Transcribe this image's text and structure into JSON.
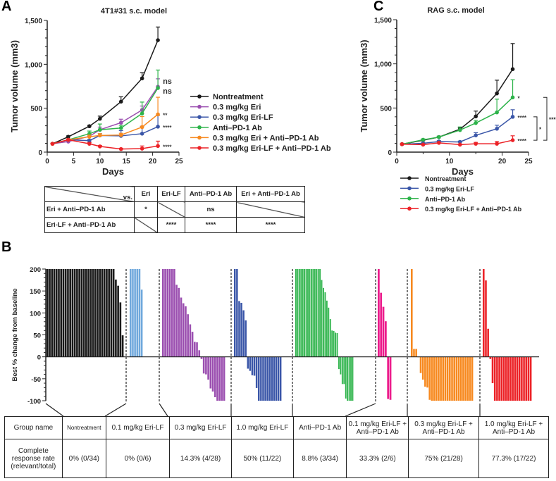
{
  "panel_labels": {
    "a": "A",
    "b": "B",
    "c": "C"
  },
  "colors": {
    "Nontreatment": "#1a1a1a",
    "0.3 mg/kg Eri": "#9b4fb0",
    "0.3 mg/kg Eri-LF": "#3a56a8",
    "Anti–PD-1 Ab": "#2db34a",
    "0.3 mg/kg Eri + Anti–PD-1 Ab": "#f7891f",
    "0.3 mg/kg Eri-LF + Anti–PD-1 Ab": "#ec2227"
  },
  "chart_data": [
    {
      "type": "line",
      "title": "4T1#31 s.c. model",
      "xlabel": "Days",
      "ylabel": "Tumor volume (mm3)",
      "xlim": [
        0,
        25
      ],
      "ylim": [
        0,
        1500
      ],
      "xticks": [
        "0",
        "5",
        "10",
        "15",
        "20",
        "25"
      ],
      "yticks": [
        "0",
        "500",
        "1,000",
        "1,500"
      ],
      "x": [
        1,
        4,
        8,
        10,
        14,
        18,
        21
      ],
      "series": [
        {
          "name": "Nontreatment",
          "values": [
            95,
            175,
            295,
            380,
            575,
            840,
            1275
          ],
          "error": [
            5,
            10,
            10,
            30,
            55,
            65,
            150
          ],
          "annotation": ""
        },
        {
          "name": "0.3 mg/kg Eri",
          "values": [
            95,
            120,
            180,
            255,
            335,
            480,
            745
          ],
          "error": [
            5,
            10,
            20,
            30,
            40,
            45,
            90
          ],
          "annotation": "ns"
        },
        {
          "name": "0.3 mg/kg Eri-LF",
          "values": [
            95,
            140,
            130,
            190,
            185,
            210,
            290
          ],
          "error": [
            5,
            10,
            15,
            20,
            60,
            85,
            130
          ],
          "annotation": "****"
        },
        {
          "name": "Anti–PD-1 Ab",
          "values": [
            95,
            140,
            210,
            255,
            275,
            440,
            730
          ],
          "error": [
            5,
            10,
            30,
            65,
            30,
            130,
            205
          ],
          "annotation": "ns"
        },
        {
          "name": "0.3 mg/kg Eri + Anti–PD-1 Ab",
          "values": [
            95,
            140,
            175,
            190,
            195,
            285,
            430
          ],
          "error": [
            5,
            10,
            20,
            20,
            20,
            120,
            195
          ],
          "annotation": "**"
        },
        {
          "name": "0.3 mg/kg Eri-LF + Anti–PD-1 Ab",
          "values": [
            95,
            140,
            95,
            65,
            35,
            40,
            70
          ],
          "error": [
            5,
            10,
            15,
            10,
            8,
            30,
            55
          ],
          "annotation": "****"
        }
      ],
      "legend": "right",
      "comparison_table": {
        "header": [
          "vs.",
          "Eri",
          "Eri-LF",
          "Anti–PD-1 Ab",
          "Eri + Anti–PD-1 Ab"
        ],
        "rows": [
          [
            "Eri + Anti–PD-1 Ab",
            "*",
            "",
            "ns",
            ""
          ],
          [
            "Eri-LF + Anti–PD-1 Ab",
            "",
            "****",
            "****",
            "****"
          ]
        ]
      }
    },
    {
      "type": "bar",
      "subtype": "waterfall",
      "ylabel": "Best % change from baseline",
      "ylim": [
        -100,
        200
      ],
      "yticks": [
        "200",
        "150",
        "100",
        "50",
        "0",
        "-50",
        "-100"
      ],
      "groups": [
        {
          "name": "Nontreatment",
          "color": "#1a1a1a",
          "values": [
            200,
            200,
            200,
            200,
            200,
            200,
            200,
            200,
            200,
            200,
            200,
            200,
            200,
            200,
            200,
            200,
            200,
            200,
            200,
            200,
            200,
            200,
            200,
            200,
            200,
            200,
            200,
            200,
            200,
            200,
            176,
            162,
            124,
            49
          ]
        },
        {
          "name": "0.1 mg/kg Eri-LF",
          "color": "#6fa8dc",
          "values": [
            200,
            200,
            200,
            200,
            200,
            153
          ]
        },
        {
          "name": "0.3 mg/kg Eri-LF",
          "color": "#9b4fb0",
          "values": [
            200,
            200,
            200,
            200,
            200,
            200,
            164,
            157,
            135,
            122,
            115,
            97,
            74,
            57,
            34,
            33,
            15,
            -5,
            -38,
            -40,
            -52,
            -72,
            -79,
            -92,
            -100,
            -100,
            -100,
            -100
          ]
        },
        {
          "name": "1.0 mg/kg Eri-LF",
          "color": "#3a56a8",
          "values": [
            200,
            200,
            127,
            123,
            106,
            83,
            -27,
            -32,
            -42,
            -43,
            -71,
            -100,
            -100,
            -100,
            -100,
            -100,
            -100,
            -100,
            -100,
            -100,
            -100,
            -100
          ]
        },
        {
          "name": "Anti–PD-1 Ab",
          "color": "#2db34a",
          "values": [
            200,
            200,
            200,
            200,
            200,
            200,
            200,
            200,
            200,
            200,
            200,
            200,
            200,
            200,
            200,
            175,
            157,
            147,
            128,
            112,
            86,
            60,
            59,
            55,
            54,
            -28,
            -40,
            -62,
            -62,
            -95,
            -100,
            -100,
            -100,
            -100
          ]
        },
        {
          "name": "0.1 mg/kg Eri-LF + Anti–PD-1 Ab",
          "color": "#ec1c8c",
          "values": [
            200,
            146,
            114,
            81,
            -96,
            -98
          ]
        },
        {
          "name": "0.3 mg/kg Eri-LF + Anti–PD-1 Ab",
          "color": "#f7891f",
          "values": [
            200,
            18,
            18,
            -1,
            -37,
            -52,
            -68,
            -70,
            -98,
            -100,
            -100,
            -100,
            -100,
            -100,
            -100,
            -100,
            -100,
            -100,
            -100,
            -100,
            -100,
            -100,
            -100,
            -100,
            -100,
            -100,
            -100,
            -100
          ]
        },
        {
          "name": "1.0 mg/kg Eri-LF + Anti–PD-1 Ab",
          "color": "#ec2227",
          "values": [
            200,
            174,
            64,
            -5,
            -60,
            -100,
            -100,
            -100,
            -100,
            -100,
            -100,
            -100,
            -100,
            -100,
            -100,
            -100,
            -100,
            -100,
            -100,
            -100,
            -100,
            -100
          ]
        }
      ],
      "table": {
        "row_headers": [
          "Group name",
          "Complete response rate (relevant/total)"
        ],
        "group_names": [
          "Nontreatment",
          "0.1 mg/kg Eri-LF",
          "0.3 mg/kg Eri-LF",
          "1.0 mg/kg Eri-LF",
          "Anti–PD-1 Ab",
          "0.1 mg/kg Eri-LF + Anti–PD-1 Ab",
          "0.3 mg/kg Eri-LF + Anti–PD-1 Ab",
          "1.0 mg/kg Eri-LF + Anti–PD-1 Ab"
        ],
        "rates": [
          "0% (0/34)",
          "0% (0/6)",
          "14.3% (4/28)",
          "50% (11/22)",
          "8.8% (3/34)",
          "33.3% (2/6)",
          "75% (21/28)",
          "77.3% (17/22)"
        ]
      }
    },
    {
      "type": "line",
      "title": "RAG s.c. model",
      "xlabel": "Days",
      "ylabel": "Tumor volume (mm3)",
      "xlim": [
        0,
        25
      ],
      "ylim": [
        0,
        1500
      ],
      "xticks": [
        "0",
        "10",
        "20",
        "25"
      ],
      "yticks": [
        "0",
        "500",
        "1,000",
        "1,500"
      ],
      "x": [
        1,
        5,
        8,
        12,
        15,
        19,
        22
      ],
      "series": [
        {
          "name": "Nontreatment",
          "values": [
            90,
            135,
            170,
            260,
            405,
            665,
            940
          ],
          "error": [
            5,
            10,
            10,
            20,
            60,
            150,
            290
          ],
          "annotation": ""
        },
        {
          "name": "0.3 mg/kg Eri-LF",
          "values": [
            90,
            100,
            120,
            115,
            190,
            265,
            400
          ],
          "error": [
            5,
            5,
            10,
            10,
            30,
            40,
            80
          ],
          "annotation": "****"
        },
        {
          "name": "Anti–PD-1 Ab",
          "values": [
            90,
            140,
            170,
            250,
            330,
            450,
            620
          ],
          "error": [
            5,
            10,
            10,
            35,
            30,
            150,
            200
          ],
          "annotation": "*"
        },
        {
          "name": "0.3 mg/kg Eri-LF + Anti–PD-1 Ab",
          "values": [
            90,
            85,
            105,
            85,
            95,
            95,
            135
          ],
          "error": [
            5,
            5,
            10,
            5,
            15,
            25,
            50
          ],
          "annotation": "****"
        }
      ],
      "legend": "bottom",
      "brackets": [
        {
          "from": "0.3 mg/kg Eri-LF + Anti–PD-1 Ab",
          "to": "0.3 mg/kg Eri-LF",
          "label": "*"
        },
        {
          "from": "0.3 mg/kg Eri-LF + Anti–PD-1 Ab",
          "to": "Anti–PD-1 Ab",
          "label": "****"
        }
      ]
    }
  ]
}
